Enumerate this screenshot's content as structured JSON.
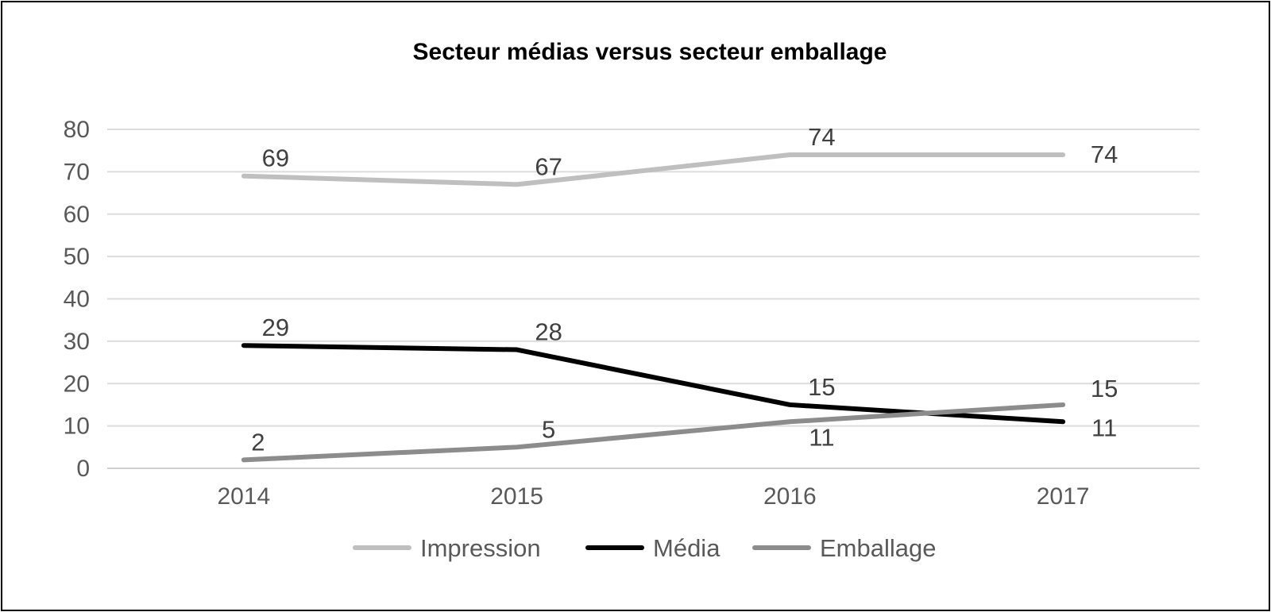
{
  "chart_data": {
    "type": "line",
    "title": "Secteur médias versus secteur emballage",
    "categories": [
      "2014",
      "2015",
      "2016",
      "2017"
    ],
    "ylim": [
      0,
      80
    ],
    "yticks": [
      0,
      10,
      20,
      30,
      40,
      50,
      60,
      70,
      80
    ],
    "grid": true,
    "legend_position": "bottom",
    "series": [
      {
        "name": "Impression",
        "values": [
          69,
          67,
          74,
          74
        ],
        "color": "#bfbfbf"
      },
      {
        "name": "Média",
        "values": [
          29,
          28,
          15,
          11
        ],
        "color": "#000000"
      },
      {
        "name": "Emballage",
        "values": [
          2,
          5,
          11,
          15
        ],
        "color": "#8c8c8c"
      }
    ]
  }
}
